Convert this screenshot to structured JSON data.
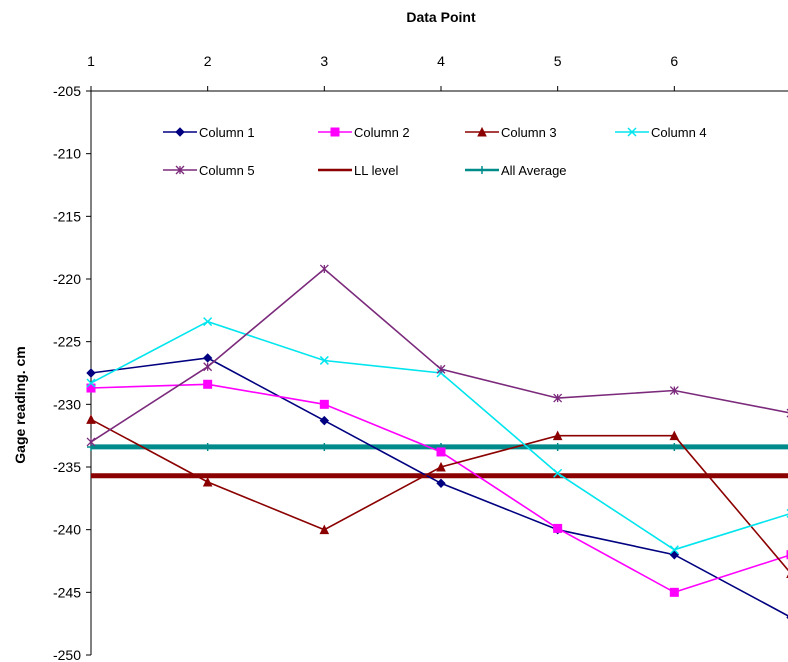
{
  "chart_data": {
    "type": "line",
    "title": "",
    "xlabel": "Data Point",
    "ylabel": "Gage reading. cm",
    "x": [
      1,
      2,
      3,
      4,
      5,
      6,
      7
    ],
    "x_tick_labels": [
      "1",
      "2",
      "3",
      "4",
      "5",
      "6"
    ],
    "xlim": [
      1,
      7
    ],
    "ylim": [
      -250,
      -205
    ],
    "y_ticks": [
      -205,
      -210,
      -215,
      -220,
      -225,
      -230,
      -235,
      -240,
      -245,
      -250
    ],
    "x_axis_position": "top",
    "grid": false,
    "legend_position": "top-inside",
    "series": [
      {
        "name": "Column 1",
        "color": "#000080",
        "marker": "diamond",
        "values": [
          -227.5,
          -226.3,
          -231.3,
          -236.3,
          -240,
          -242,
          -247
        ]
      },
      {
        "name": "Column 2",
        "color": "#ff00ff",
        "marker": "square",
        "values": [
          -228.7,
          -228.4,
          -230,
          -233.8,
          -239.9,
          -245,
          -242
        ]
      },
      {
        "name": "Column 3",
        "color": "#8b0000",
        "marker": "triangle",
        "values": [
          -231.2,
          -236.2,
          -240,
          -235,
          -232.5,
          -232.5,
          -243.5
        ]
      },
      {
        "name": "Column 4",
        "color": "#00e5ee",
        "marker": "x",
        "values": [
          -228.3,
          -223.4,
          -226.5,
          -227.5,
          -235.5,
          -241.6,
          -238.7
        ]
      },
      {
        "name": "Column 5",
        "color": "#7b2a7b",
        "marker": "star",
        "values": [
          -233,
          -227,
          -219.2,
          -227.2,
          -229.5,
          -228.9,
          -230.7
        ]
      },
      {
        "name": "LL level",
        "color": "#8b0000",
        "marker": "none",
        "line_width": 5,
        "values": [
          -235.7,
          -235.7,
          -235.7,
          -235.7,
          -235.7,
          -235.7,
          -235.7
        ]
      },
      {
        "name": "All Average",
        "color": "#008b8b",
        "marker": "plus",
        "line_width": 5,
        "values": [
          -233.4,
          -233.4,
          -233.4,
          -233.4,
          -233.4,
          -233.4,
          -233.4
        ]
      }
    ]
  }
}
